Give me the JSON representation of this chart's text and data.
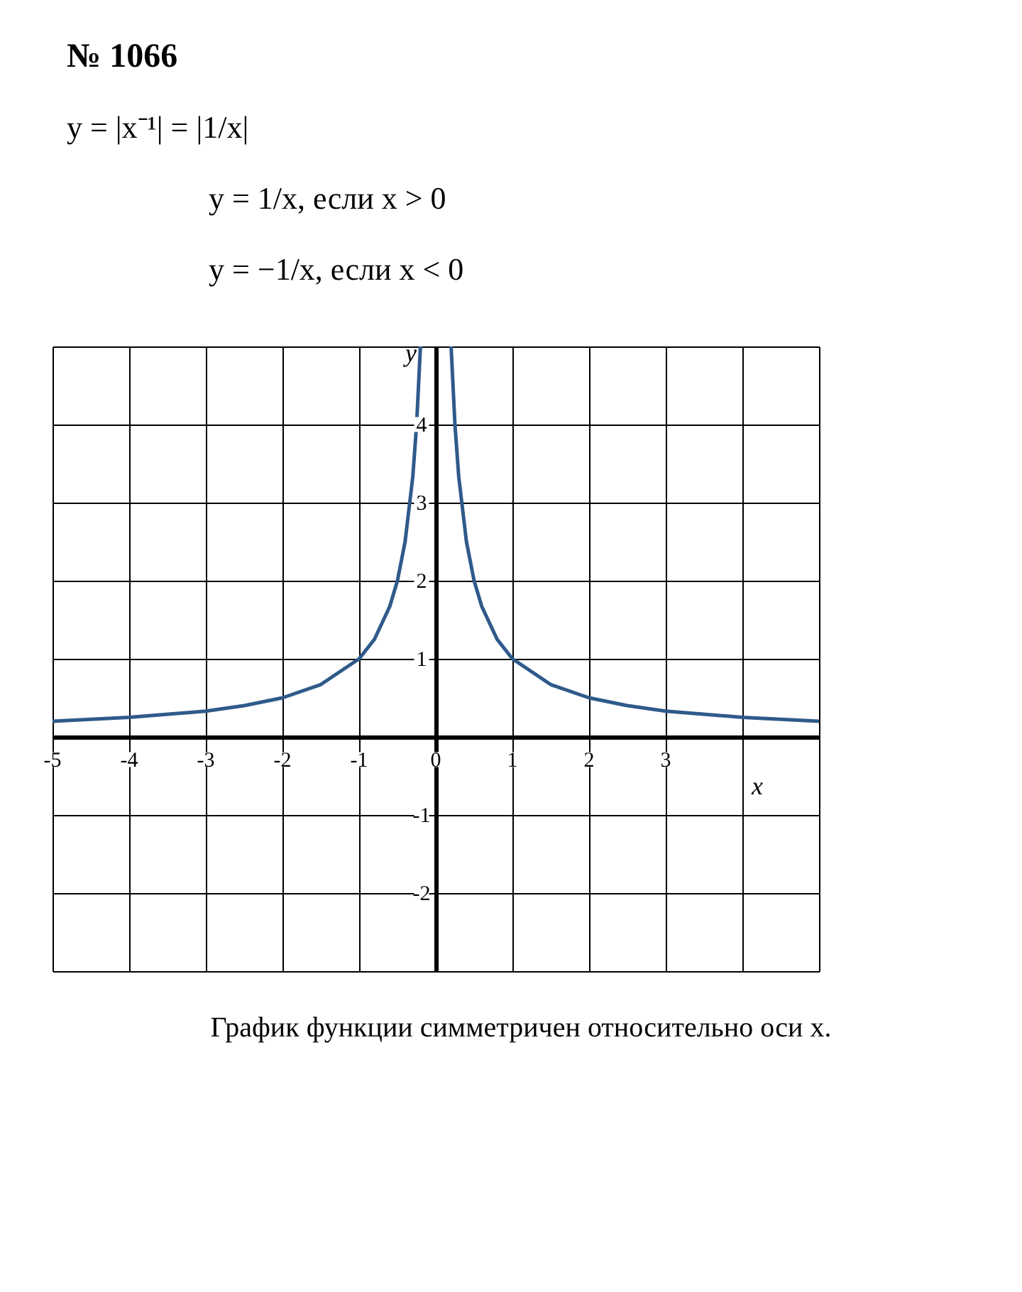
{
  "chart_data": {
    "type": "line",
    "title": "№ 1066",
    "annotations": [
      "y = |x⁻¹| = |1/x|",
      "y = 1/x, если x > 0",
      "y = −1/x, если x < 0",
      "График функции симметричен относительно оси x."
    ],
    "xlabel": "x",
    "ylabel": "y",
    "x": [
      -5,
      -4,
      -3,
      -2.5,
      -2,
      -1.5,
      -1,
      -0.8,
      -0.6,
      -0.5,
      -0.4,
      -0.3,
      -0.25,
      -0.2,
      0,
      0.2,
      0.25,
      0.3,
      0.4,
      0.5,
      0.6,
      0.8,
      1,
      1.5,
      2,
      2.5,
      3,
      4,
      5
    ],
    "series": [
      {
        "color": "#2f5a8a",
        "values": [
          0.2,
          0.25,
          0.33,
          0.4,
          0.5,
          0.67,
          1,
          1.25,
          1.67,
          2,
          2.5,
          3.33,
          4,
          5,
          null,
          5,
          4,
          3.33,
          2.5,
          2,
          1.67,
          1.25,
          1,
          0.67,
          0.5,
          0.4,
          0.33,
          0.25,
          0.2
        ]
      }
    ],
    "xlim": [
      -5,
      5
    ],
    "ylim": [
      -3,
      5
    ],
    "xticks": [
      -5,
      -4,
      -3,
      -2,
      -1,
      0,
      1,
      2,
      3,
      {
        "value": 4,
        "label": null
      },
      {
        "value": 5,
        "label": null
      }
    ],
    "yticks": [
      {
        "value": -3,
        "label": null
      },
      -2,
      -1,
      {
        "value": 0,
        "label": null
      },
      1,
      2,
      3,
      4,
      {
        "value": 5,
        "label": null
      }
    ],
    "grid": true,
    "line_style": "solid",
    "marker": "none",
    "legend": false
  }
}
